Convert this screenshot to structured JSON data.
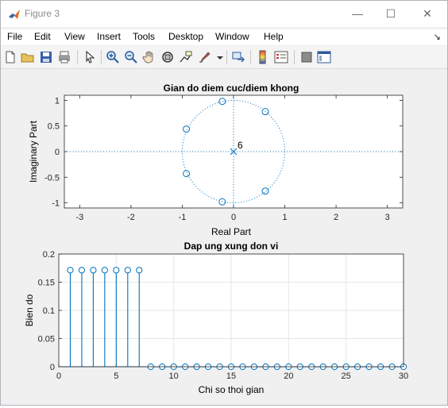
{
  "window": {
    "title": "Figure 3",
    "minimize_glyph": "—",
    "maximize_glyph": "☐",
    "close_glyph": "✕"
  },
  "menu": [
    "File",
    "Edit",
    "View",
    "Insert",
    "Tools",
    "Desktop",
    "Window",
    "Help"
  ],
  "menu_dock_glyph": "↘",
  "toolbar": [
    "new-figure-icon",
    "open-file-icon",
    "save-icon",
    "print-icon",
    "pointer-icon",
    "zoom-in-icon",
    "zoom-out-icon",
    "pan-icon",
    "rotate-3d-icon",
    "data-cursor-icon",
    "brush-icon",
    "link-plot-icon",
    "colorbar-icon",
    "legend-icon",
    "hide-plot-tools-icon",
    "show-plot-tools-icon"
  ],
  "colors": {
    "series": "#0072bd",
    "axes_bg": "#ffffff",
    "figure_bg": "#f0f0f0",
    "grid": "#e6e6e6"
  },
  "chart_data": [
    {
      "type": "scatter",
      "title": "Gian do diem cuc/diem khong",
      "xlabel": "Real Part",
      "ylabel": "Imaginary Part",
      "xlim": [
        -3.3,
        3.3
      ],
      "ylim": [
        -1.1,
        1.1
      ],
      "xticks": [
        -3,
        -2,
        -1,
        0,
        1,
        2,
        3
      ],
      "yticks": [
        -1,
        -0.5,
        0,
        0.5,
        1
      ],
      "grid": false,
      "unit_circle": true,
      "zeros": [
        {
          "x": -0.22,
          "y": 0.98
        },
        {
          "x": 0.62,
          "y": 0.78
        },
        {
          "x": -0.92,
          "y": 0.44
        },
        {
          "x": -0.92,
          "y": -0.43
        },
        {
          "x": 0.62,
          "y": -0.77
        },
        {
          "x": -0.22,
          "y": -0.98
        }
      ],
      "poles": [
        {
          "x": 0,
          "y": 0
        }
      ],
      "pole_multiplicity_label": "6"
    },
    {
      "type": "stem",
      "title": "Dap ung xung don vi",
      "xlabel": "Chi so thoi gian",
      "ylabel": "Bien do",
      "xlim": [
        0,
        30
      ],
      "ylim": [
        0,
        0.2
      ],
      "xticks": [
        0,
        5,
        10,
        15,
        20,
        25,
        30
      ],
      "yticks": [
        0,
        0.05,
        0.1,
        0.15,
        0.2
      ],
      "grid": true,
      "x": [
        1,
        2,
        3,
        4,
        5,
        6,
        7,
        8,
        9,
        10,
        11,
        12,
        13,
        14,
        15,
        16,
        17,
        18,
        19,
        20,
        21,
        22,
        23,
        24,
        25,
        26,
        27,
        28,
        29,
        30
      ],
      "y": [
        0.1714,
        0.1714,
        0.1714,
        0.1714,
        0.1714,
        0.1714,
        0.1714,
        0,
        0,
        0,
        0,
        0,
        0,
        0,
        0,
        0,
        0,
        0,
        0,
        0,
        0,
        0,
        0,
        0,
        0,
        0,
        0,
        0,
        0,
        0
      ]
    }
  ]
}
